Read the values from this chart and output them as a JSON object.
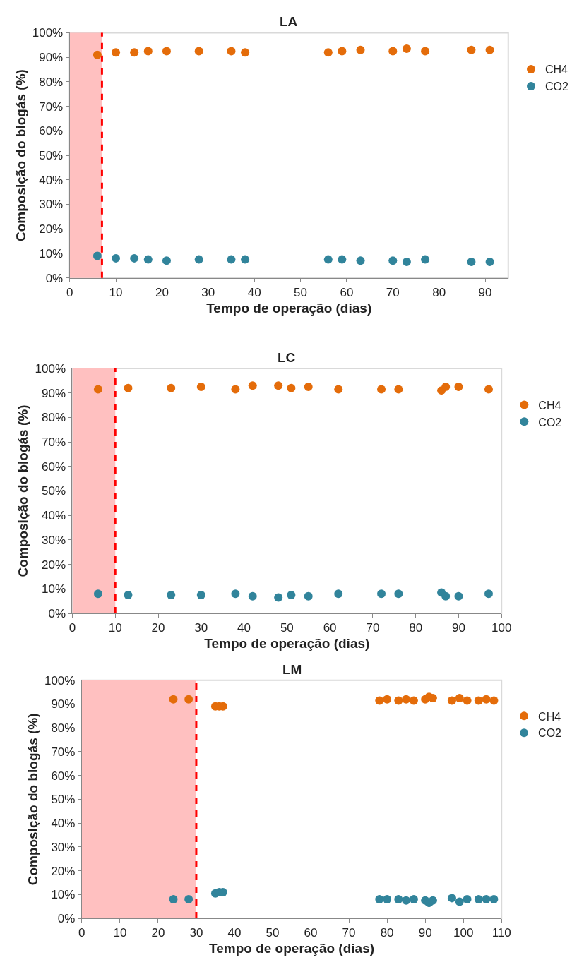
{
  "chart_data": [
    {
      "type": "scatter",
      "title": "LA",
      "xlabel": "Tempo de operação (dias)",
      "ylabel": "Composição do biogás (%)",
      "marker": "circle",
      "legend": "right",
      "grid": false,
      "x": [
        6,
        10,
        14,
        17,
        21,
        28,
        35,
        38,
        56,
        59,
        63,
        70,
        73,
        77,
        87,
        91
      ],
      "series": [
        {
          "name": "CH4",
          "color": "#e46c0a",
          "values": [
            91,
            92,
            92,
            92.5,
            92.5,
            92.5,
            92.5,
            92,
            92,
            92.5,
            93,
            92.5,
            93.5,
            92.5,
            93,
            93
          ]
        },
        {
          "name": "CO2",
          "color": "#31849b",
          "values": [
            9,
            8,
            8,
            7.5,
            7,
            7.5,
            7.5,
            7.5,
            7.5,
            7.5,
            7,
            7,
            6.5,
            7.5,
            6.5,
            6.5
          ]
        }
      ],
      "xlim": [
        0,
        95
      ],
      "xticks": [
        0,
        10,
        20,
        30,
        40,
        50,
        60,
        70,
        80,
        90
      ],
      "ylim": [
        0,
        100
      ],
      "yticks": [
        {
          "value": 0,
          "label": "0%"
        },
        {
          "value": 10,
          "label": "10%"
        },
        {
          "value": 20,
          "label": "20%"
        },
        {
          "value": 30,
          "label": "30%"
        },
        {
          "value": 40,
          "label": "40%"
        },
        {
          "value": 50,
          "label": "50%"
        },
        {
          "value": 60,
          "label": "60%"
        },
        {
          "value": 70,
          "label": "70%"
        },
        {
          "value": 80,
          "label": "80%"
        },
        {
          "value": 90,
          "label": "90%"
        },
        {
          "value": 100,
          "label": "100%"
        }
      ],
      "bands": [
        {
          "axis": "x",
          "from": 0,
          "to": 7,
          "color": "#ffc0c0"
        }
      ],
      "ref_lines": [
        {
          "axis": "x",
          "value": 7,
          "color": "#ff0000",
          "line_style": "dashed"
        }
      ]
    },
    {
      "type": "scatter",
      "title": "LC",
      "xlabel": "Tempo de operação (dias)",
      "ylabel": "Composição do biogás (%)",
      "marker": "circle",
      "legend": "right",
      "grid": false,
      "x": [
        6,
        13,
        23,
        30,
        38,
        42,
        48,
        51,
        55,
        62,
        72,
        76,
        86,
        87,
        90,
        97
      ],
      "series": [
        {
          "name": "CH4",
          "color": "#e46c0a",
          "values": [
            91.5,
            92,
            92,
            92.5,
            91.5,
            93,
            93,
            92,
            92.5,
            91.5,
            91.5,
            91.5,
            91,
            92.5,
            92.5,
            91.5
          ]
        },
        {
          "name": "CO2",
          "color": "#31849b",
          "values": [
            8,
            7.5,
            7.5,
            7.5,
            8,
            7,
            6.5,
            7.5,
            7,
            8,
            8,
            8,
            8.5,
            7,
            7,
            8
          ]
        }
      ],
      "xlim": [
        0,
        100
      ],
      "xticks": [
        0,
        10,
        20,
        30,
        40,
        50,
        60,
        70,
        80,
        90,
        100
      ],
      "ylim": [
        0,
        100
      ],
      "yticks": [
        {
          "value": 0,
          "label": "0%"
        },
        {
          "value": 10,
          "label": "10%"
        },
        {
          "value": 20,
          "label": "20%"
        },
        {
          "value": 30,
          "label": "30%"
        },
        {
          "value": 40,
          "label": "40%"
        },
        {
          "value": 50,
          "label": "50%"
        },
        {
          "value": 60,
          "label": "60%"
        },
        {
          "value": 70,
          "label": "70%"
        },
        {
          "value": 80,
          "label": "80%"
        },
        {
          "value": 90,
          "label": "90%"
        },
        {
          "value": 100,
          "label": "100%"
        }
      ],
      "bands": [
        {
          "axis": "x",
          "from": 0,
          "to": 10,
          "color": "#ffc0c0"
        }
      ],
      "ref_lines": [
        {
          "axis": "x",
          "value": 10,
          "color": "#ff0000",
          "line_style": "dashed"
        }
      ]
    },
    {
      "type": "scatter",
      "title": "LM",
      "xlabel": "Tempo de operação (dias)",
      "ylabel": "Composição do biogás (%)",
      "marker": "circle",
      "legend": "right",
      "grid": false,
      "x": [
        24,
        28,
        35,
        36,
        37,
        78,
        80,
        83,
        85,
        87,
        90,
        91,
        92,
        97,
        99,
        101,
        104,
        106,
        108
      ],
      "series": [
        {
          "name": "CH4",
          "color": "#e46c0a",
          "values": [
            92,
            92,
            89,
            89,
            89,
            91.5,
            92,
            91.5,
            92,
            91.5,
            92,
            93,
            92.5,
            91.5,
            92.5,
            91.5,
            91.5,
            92,
            91.5
          ]
        },
        {
          "name": "CO2",
          "color": "#31849b",
          "values": [
            8,
            8,
            10.5,
            11,
            11,
            8,
            8,
            8,
            7.5,
            8,
            7.5,
            6.5,
            7.5,
            8.5,
            7,
            8,
            8,
            8,
            8
          ]
        }
      ],
      "xlim": [
        0,
        110
      ],
      "xticks": [
        0,
        10,
        20,
        30,
        40,
        50,
        60,
        70,
        80,
        90,
        100,
        110
      ],
      "ylim": [
        0,
        100
      ],
      "yticks": [
        {
          "value": 0,
          "label": "0%"
        },
        {
          "value": 10,
          "label": "10%"
        },
        {
          "value": 20,
          "label": "20%"
        },
        {
          "value": 30,
          "label": "30%"
        },
        {
          "value": 40,
          "label": "40%"
        },
        {
          "value": 50,
          "label": "50%"
        },
        {
          "value": 60,
          "label": "60%"
        },
        {
          "value": 70,
          "label": "70%"
        },
        {
          "value": 80,
          "label": "80%"
        },
        {
          "value": 90,
          "label": "90%"
        },
        {
          "value": 100,
          "label": "100%"
        }
      ],
      "bands": [
        {
          "axis": "x",
          "from": 0,
          "to": 30,
          "color": "#ffc0c0"
        }
      ],
      "ref_lines": [
        {
          "axis": "x",
          "value": 30,
          "color": "#ff0000",
          "line_style": "dashed"
        }
      ]
    }
  ]
}
